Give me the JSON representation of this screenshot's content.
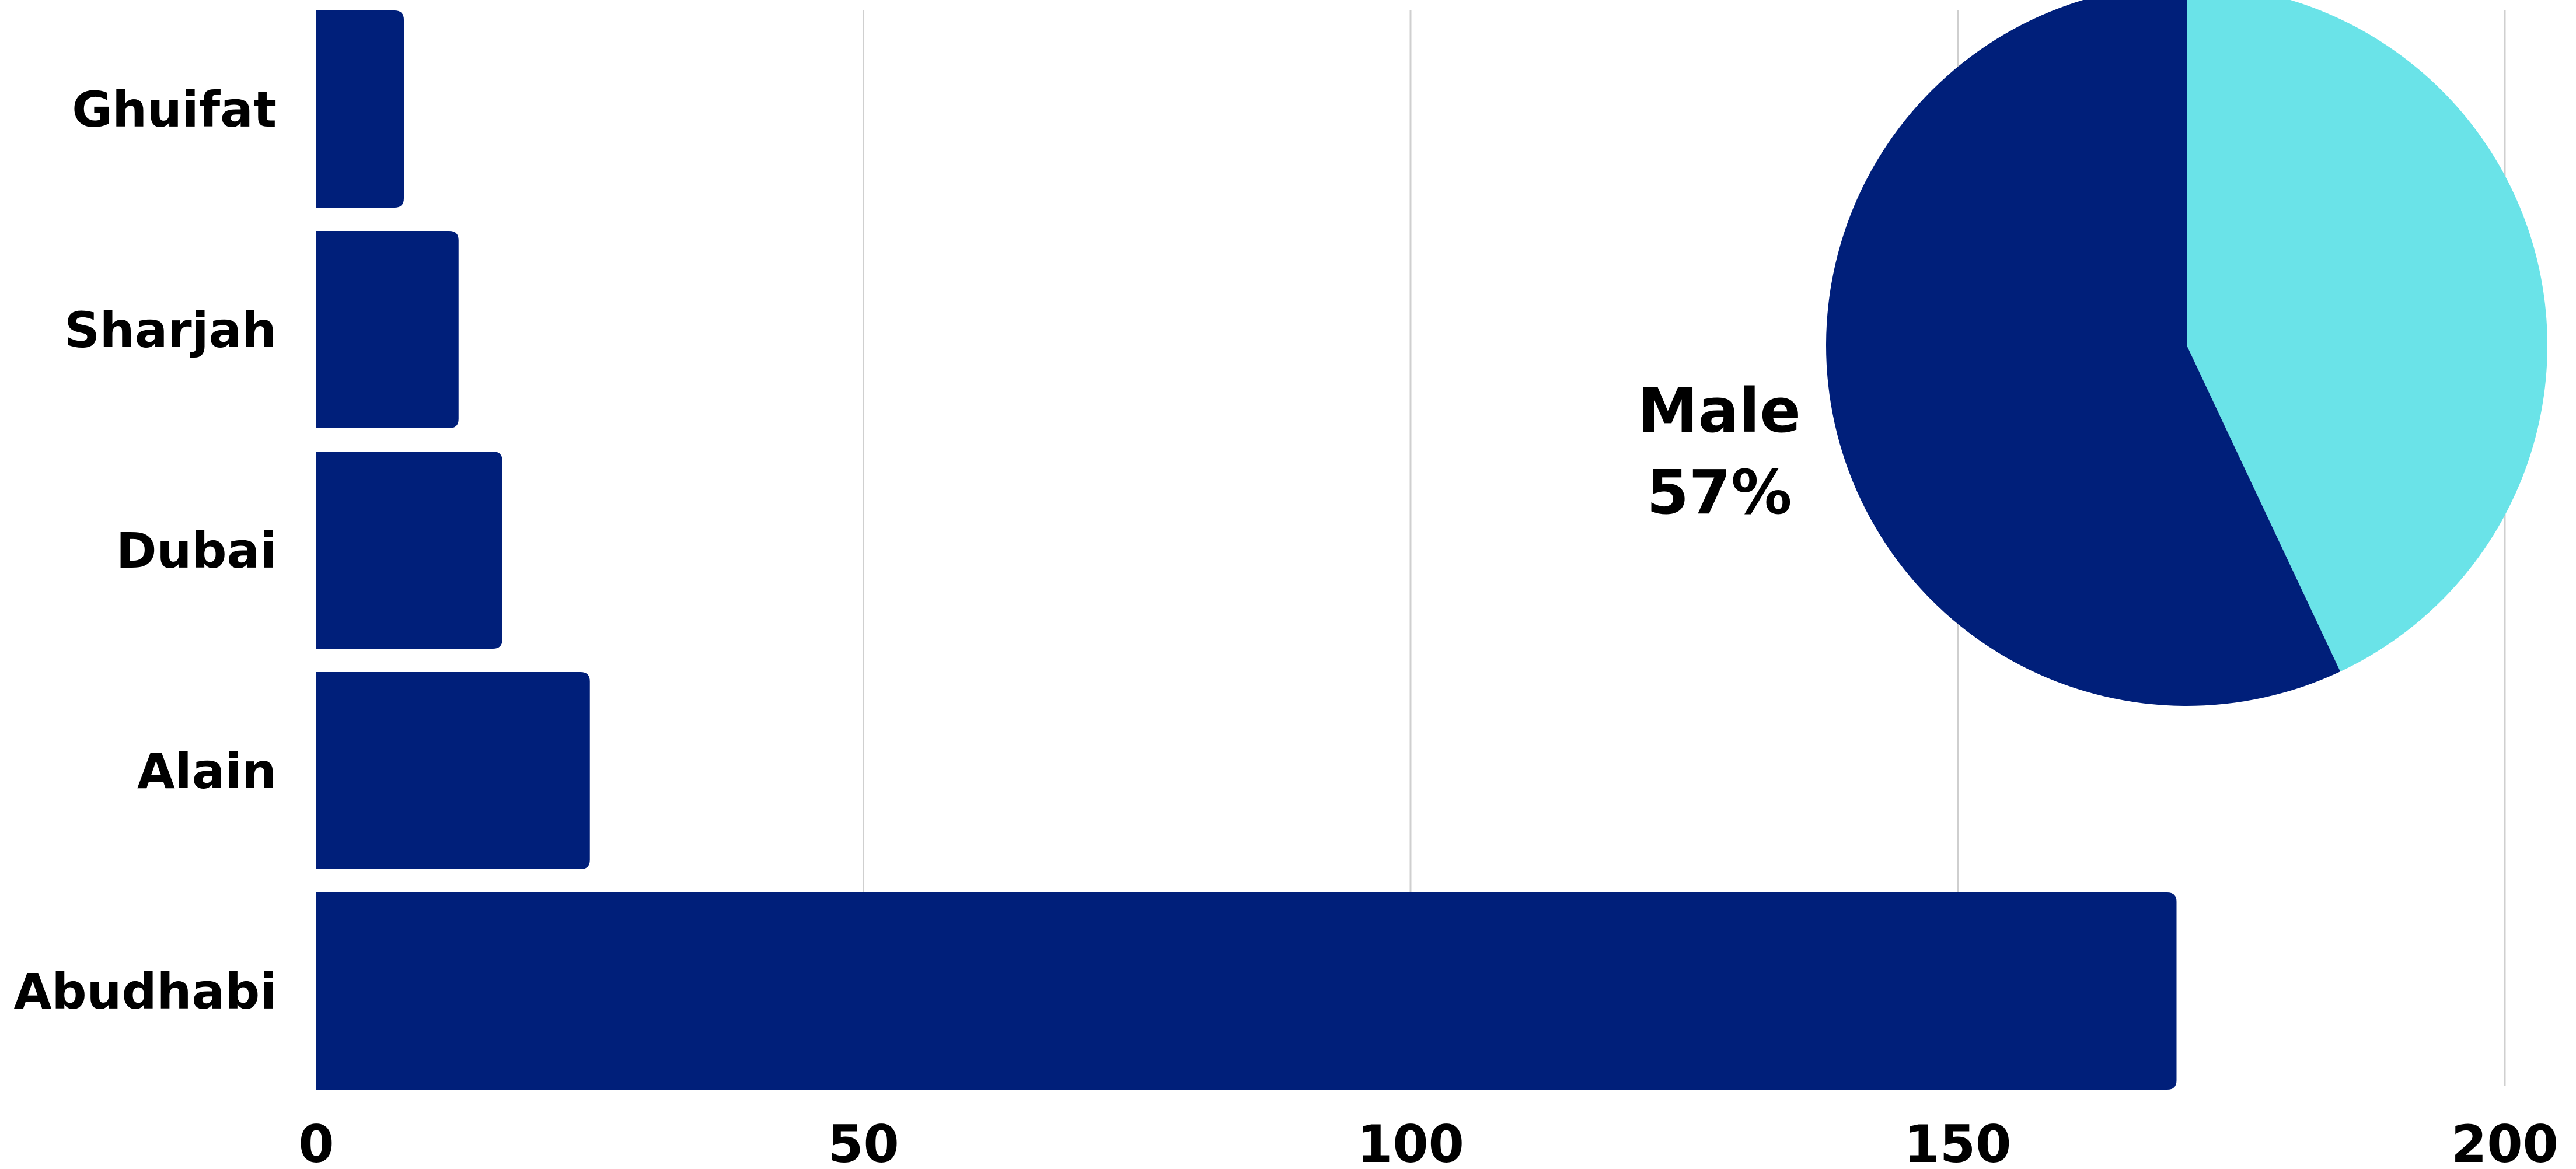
{
  "chart_data": [
    {
      "type": "bar",
      "orientation": "horizontal",
      "categories": [
        "Ghuifat",
        "Sharjah",
        "Dubai",
        "Alain",
        "Abudhabi"
      ],
      "values": [
        8,
        13,
        17,
        25,
        170
      ],
      "xlim": [
        0,
        200
      ],
      "xticks": [
        "0",
        "50",
        "100",
        "150",
        "200"
      ],
      "xtick_values": [
        0,
        50,
        100,
        150,
        200
      ],
      "grid": "vertical",
      "bar_color": "#001f7a"
    },
    {
      "type": "pie",
      "slices": [
        {
          "name": "Male",
          "value": 57,
          "label": "Male",
          "pct_label": "57%",
          "color": "#001f7a"
        },
        {
          "name": "",
          "value": 43,
          "color": "#6ae3e8"
        }
      ]
    }
  ],
  "colors": {
    "bar": "#001f7a",
    "grid": "#cfcfcf",
    "pie_primary": "#001f7a",
    "pie_secondary": "#6ae3e8"
  }
}
